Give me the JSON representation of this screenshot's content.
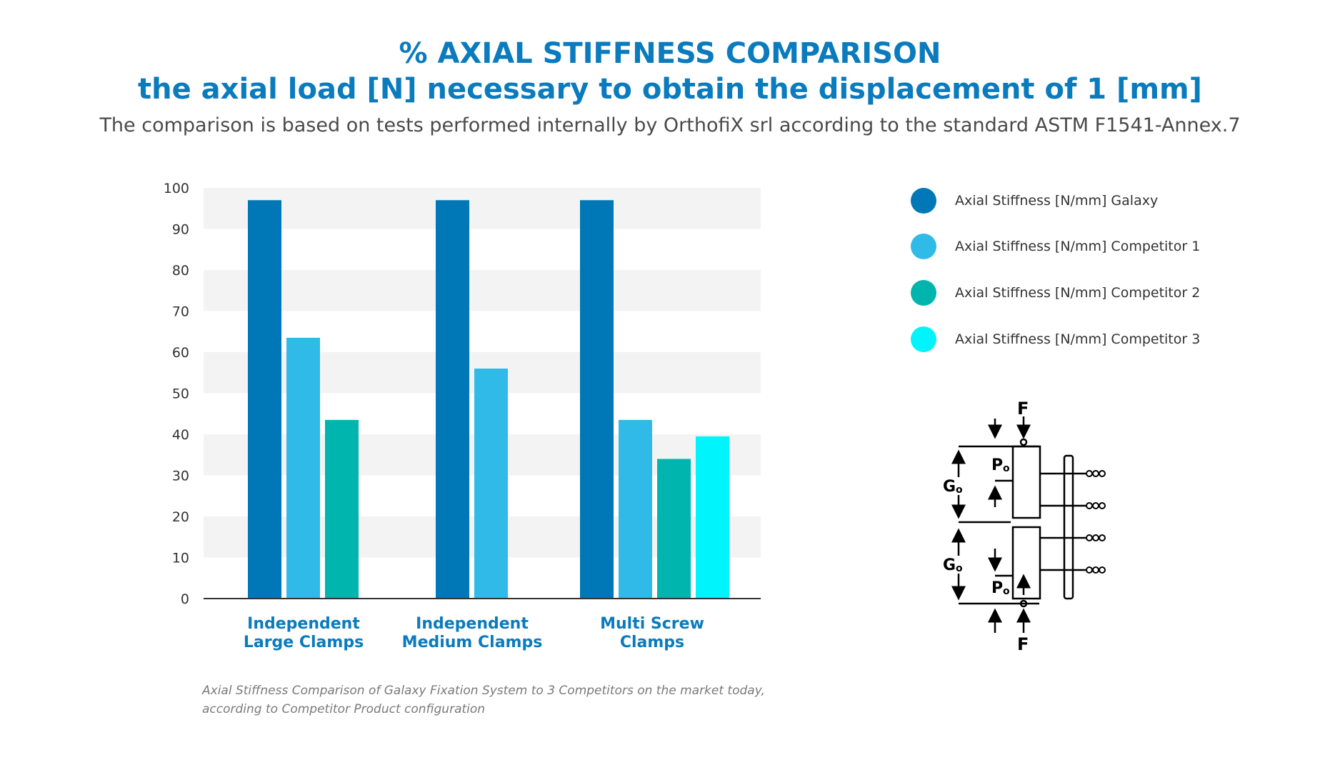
{
  "header": {
    "title_line1": "% AXIAL STIFFNESS COMPARISON",
    "title_line2": "the axial load [N] necessary to obtain the displacement of 1 [mm]",
    "subtitle": "The comparison is based on tests performed internally by OrthofiX srl according to the standard ASTM F1541-Annex.7"
  },
  "chart_data": {
    "type": "bar",
    "categories": [
      [
        "Independent",
        "Large Clamps"
      ],
      [
        "Independent",
        "Medium Clamps"
      ],
      [
        "Multi Screw",
        "Clamps"
      ]
    ],
    "series": [
      {
        "name": "Axial Stiffness [N/mm] Galaxy",
        "color": "#0077b6",
        "values": [
          97,
          97,
          97
        ]
      },
      {
        "name": "Axial Stiffness [N/mm] Competitor 1",
        "color": "#2fbae8",
        "values": [
          63.5,
          56,
          43.5
        ]
      },
      {
        "name": "Axial Stiffness [N/mm] Competitor 2",
        "color": "#00b5ad",
        "values": [
          43.5,
          null,
          34
        ]
      },
      {
        "name": "Axial Stiffness [N/mm] Competitor 3",
        "color": "#00f4fb",
        "values": [
          null,
          null,
          39.5
        ]
      }
    ],
    "ylim": [
      0,
      100
    ],
    "yticks": [
      0,
      10,
      20,
      30,
      40,
      50,
      60,
      70,
      80,
      90,
      100
    ],
    "grid": "alternating horizontal bands",
    "legend_position": "right",
    "category_label_color": "#0a7bbd"
  },
  "footnote": {
    "line1": "Axial Stiffness Comparison of Galaxy Fixation System to 3 Competitors on the market today,",
    "line2": "according to Competitor Product configuration"
  },
  "diagram": {
    "labels": {
      "force_top": "F",
      "force_bottom": "F",
      "gap_upper": "G",
      "gap_lower": "G",
      "pin_upper": "P",
      "pin_lower": "P",
      "subscript": "o"
    }
  }
}
